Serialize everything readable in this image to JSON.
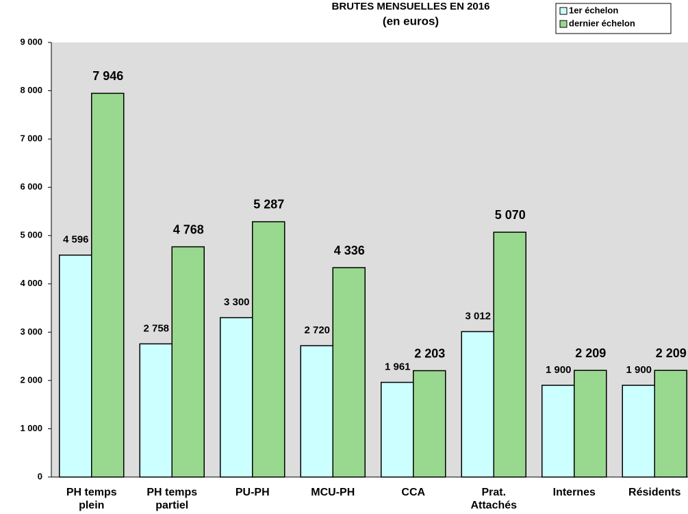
{
  "chart_data": {
    "type": "bar",
    "title": "BRUTES MENSUELLES EN 2016",
    "subtitle": "(en euros)",
    "categories": [
      "PH temps plein",
      "PH temps partiel",
      "PU-PH",
      "MCU-PH",
      "CCA",
      "Prat. Attachés",
      "Internes",
      "Résidents"
    ],
    "series": [
      {
        "name": "1er échelon",
        "color": "#ccffff",
        "values": [
          4596,
          2758,
          3300,
          2720,
          1961,
          3012,
          1900,
          1900
        ],
        "value_labels": [
          "4 596",
          "2 758",
          "3 300",
          "2 720",
          "1 961",
          "3 012",
          "1 900",
          "1 900"
        ]
      },
      {
        "name": "dernier échelon",
        "color": "#99d98f",
        "values": [
          7946,
          4768,
          5287,
          4336,
          2203,
          5070,
          2209,
          2209
        ],
        "value_labels": [
          "7 946",
          "4 768",
          "5 287",
          "4 336",
          "2 203",
          "5 070",
          "2 209",
          "2 209"
        ]
      }
    ],
    "ylim": [
      0,
      9000
    ],
    "yticks": [
      {
        "value": 0,
        "label": "0"
      },
      {
        "value": 1000,
        "label": "1 000"
      },
      {
        "value": 2000,
        "label": "2 000"
      },
      {
        "value": 3000,
        "label": "3 000"
      },
      {
        "value": 4000,
        "label": "4 000"
      },
      {
        "value": 5000,
        "label": "5 000"
      },
      {
        "value": 6000,
        "label": "6 000"
      },
      {
        "value": 7000,
        "label": "7 000"
      },
      {
        "value": 8000,
        "label": "8 000"
      },
      {
        "value": 9000,
        "label": "9 000"
      }
    ],
    "grid": false,
    "legend": "top-right"
  }
}
